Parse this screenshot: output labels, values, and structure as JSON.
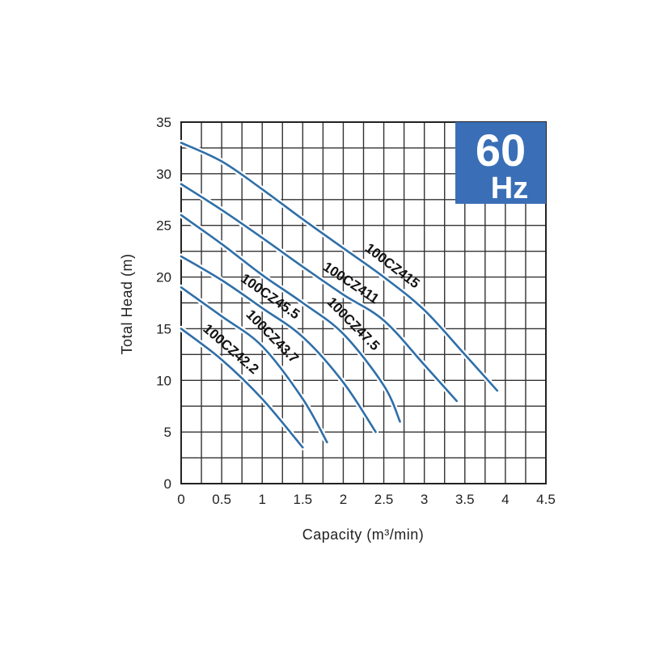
{
  "chart_data": {
    "type": "line",
    "xlabel": "Capacity (m³/min)",
    "ylabel": "Total Head (m)",
    "xlim": [
      0,
      4.5
    ],
    "ylim": [
      0,
      35
    ],
    "x_ticks": [
      "0",
      "0.5",
      "1",
      "1.5",
      "2",
      "2.5",
      "3",
      "3.5",
      "4",
      "4.5"
    ],
    "y_ticks": [
      "0",
      "5",
      "10",
      "15",
      "20",
      "25",
      "30",
      "35"
    ],
    "grid": true,
    "grid_x_step": 0.25,
    "grid_y_step": 2.5,
    "series_color": "#2f6fa8",
    "badge": {
      "line1": "60",
      "line2": "Hz",
      "color": "#3a6fb7"
    },
    "series": [
      {
        "name": "100CZ415",
        "x": [
          0,
          0.5,
          1,
          1.5,
          2,
          2.5,
          3,
          3.5,
          3.9
        ],
        "y": [
          33,
          31.2,
          28.5,
          25.6,
          22.8,
          20,
          16.8,
          12.5,
          9
        ]
      },
      {
        "name": "100CZ411",
        "x": [
          0,
          0.5,
          1,
          1.5,
          2,
          2.5,
          3,
          3.4
        ],
        "y": [
          29,
          26.5,
          23.8,
          21,
          18.3,
          15.8,
          11.5,
          8
        ]
      },
      {
        "name": "100CZ47.5",
        "x": [
          0,
          0.5,
          1,
          1.5,
          2,
          2.5,
          2.7
        ],
        "y": [
          26,
          23.2,
          20.2,
          17.5,
          14.5,
          9.5,
          6
        ]
      },
      {
        "name": "100CZ45.5",
        "x": [
          0,
          0.5,
          1,
          1.5,
          2,
          2.4
        ],
        "y": [
          22,
          19.7,
          17,
          14.2,
          9.8,
          5
        ]
      },
      {
        "name": "100CZ43.7",
        "x": [
          0,
          0.5,
          1,
          1.5,
          1.8
        ],
        "y": [
          19,
          16.2,
          13.3,
          8.2,
          4
        ]
      },
      {
        "name": "100CZ42.2",
        "x": [
          0,
          0.5,
          1,
          1.5
        ],
        "y": [
          15,
          12,
          8.2,
          3.5
        ]
      }
    ]
  }
}
